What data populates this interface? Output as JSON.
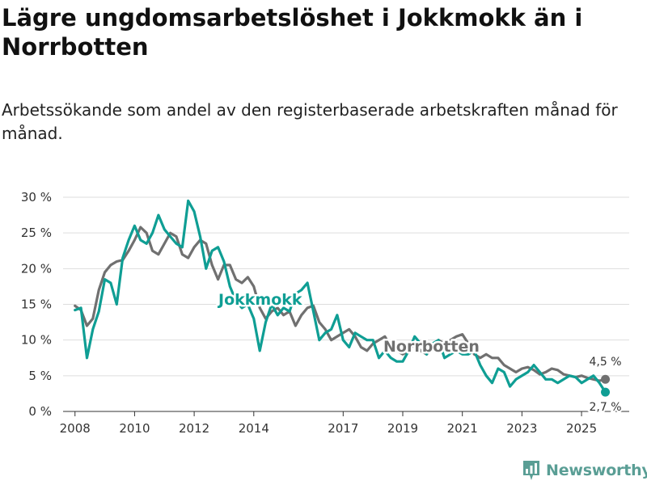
{
  "title": "Lägre ungdomsarbetslöshet i Jokkmokk än i Norrbotten",
  "subtitle": "Arbetssökande som andel av den registerbaserade arbetskraften månad för månad.",
  "colors": {
    "jokkmokk": "#0f9e94",
    "norrbotten": "#707070",
    "grid": "#dddddd",
    "logo": "#5a9e95"
  },
  "brand": {
    "name": "Newsworthy",
    "icon": "bar-chart-icon"
  },
  "chart_data": {
    "type": "line",
    "ylim": [
      0,
      30
    ],
    "xlim": [
      2007.6,
      2026.6
    ],
    "yticks": [
      {
        "value": 0,
        "label": "0 %"
      },
      {
        "value": 5,
        "label": "5 %"
      },
      {
        "value": 10,
        "label": "10 %"
      },
      {
        "value": 15,
        "label": "15 %"
      },
      {
        "value": 20,
        "label": "20 %"
      },
      {
        "value": 25,
        "label": "25 %"
      },
      {
        "value": 30,
        "label": "30 %"
      }
    ],
    "xticks": [
      {
        "value": 2008,
        "label": "2008"
      },
      {
        "value": 2010,
        "label": "2010"
      },
      {
        "value": 2012,
        "label": "2012"
      },
      {
        "value": 2014,
        "label": "2014"
      },
      {
        "value": 2017,
        "label": "2017"
      },
      {
        "value": 2019,
        "label": "2019"
      },
      {
        "value": 2021,
        "label": "2021"
      },
      {
        "value": 2023,
        "label": "2023"
      },
      {
        "value": 2025,
        "label": "2025"
      }
    ],
    "series": [
      {
        "name": "Norrbotten",
        "label": "Norrbotten",
        "end_label": "4,5 %",
        "x": [
          2008.0,
          2008.2,
          2008.4,
          2008.6,
          2008.8,
          2009.0,
          2009.2,
          2009.4,
          2009.6,
          2009.8,
          2010.0,
          2010.2,
          2010.4,
          2010.6,
          2010.8,
          2011.0,
          2011.2,
          2011.4,
          2011.6,
          2011.8,
          2012.0,
          2012.2,
          2012.4,
          2012.6,
          2012.8,
          2013.0,
          2013.2,
          2013.4,
          2013.6,
          2013.8,
          2014.0,
          2014.2,
          2014.4,
          2014.6,
          2014.8,
          2015.0,
          2015.2,
          2015.4,
          2015.6,
          2015.8,
          2016.0,
          2016.2,
          2016.4,
          2016.6,
          2016.8,
          2017.0,
          2017.2,
          2017.4,
          2017.6,
          2017.8,
          2018.0,
          2018.2,
          2018.4,
          2018.6,
          2018.8,
          2019.0,
          2019.2,
          2019.4,
          2019.6,
          2019.8,
          2020.0,
          2020.2,
          2020.4,
          2020.6,
          2020.8,
          2021.0,
          2021.2,
          2021.4,
          2021.6,
          2021.8,
          2022.0,
          2022.2,
          2022.4,
          2022.6,
          2022.8,
          2023.0,
          2023.2,
          2023.4,
          2023.6,
          2023.8,
          2024.0,
          2024.2,
          2024.4,
          2024.6,
          2024.8,
          2025.0,
          2025.2,
          2025.4,
          2025.6,
          2025.8
        ],
        "values": [
          14.8,
          14.2,
          12.0,
          13.0,
          17.0,
          19.5,
          20.5,
          21.0,
          21.2,
          22.5,
          24.0,
          25.8,
          25.0,
          22.5,
          22.0,
          23.5,
          25.0,
          24.5,
          22.0,
          21.5,
          23.0,
          24.0,
          23.5,
          20.5,
          18.5,
          20.5,
          20.5,
          18.5,
          18.0,
          18.8,
          17.5,
          14.5,
          13.0,
          14.0,
          14.5,
          13.5,
          14.0,
          12.0,
          13.5,
          14.5,
          14.8,
          12.5,
          11.5,
          10.0,
          10.5,
          11.0,
          11.5,
          10.5,
          9.0,
          8.5,
          9.5,
          10.0,
          10.5,
          9.0,
          8.5,
          8.0,
          8.5,
          9.5,
          8.5,
          8.0,
          9.0,
          10.0,
          9.5,
          10.0,
          10.5,
          10.8,
          9.5,
          8.0,
          7.5,
          8.0,
          7.5,
          7.5,
          6.5,
          6.0,
          5.5,
          6.0,
          6.2,
          5.8,
          5.2,
          5.5,
          6.0,
          5.8,
          5.2,
          5.0,
          4.8,
          5.0,
          4.7,
          4.5,
          4.3,
          4.5
        ]
      },
      {
        "name": "Jokkmokk",
        "label": "Jokkmokk",
        "end_label": "2,7 %",
        "x": [
          2008.0,
          2008.2,
          2008.4,
          2008.6,
          2008.8,
          2009.0,
          2009.2,
          2009.4,
          2009.6,
          2009.8,
          2010.0,
          2010.2,
          2010.4,
          2010.6,
          2010.8,
          2011.0,
          2011.2,
          2011.4,
          2011.6,
          2011.8,
          2012.0,
          2012.2,
          2012.4,
          2012.6,
          2012.8,
          2013.0,
          2013.2,
          2013.4,
          2013.6,
          2013.8,
          2014.0,
          2014.2,
          2014.4,
          2014.6,
          2014.8,
          2015.0,
          2015.2,
          2015.4,
          2015.6,
          2015.8,
          2016.0,
          2016.2,
          2016.4,
          2016.6,
          2016.8,
          2017.0,
          2017.2,
          2017.4,
          2017.6,
          2017.8,
          2018.0,
          2018.2,
          2018.4,
          2018.6,
          2018.8,
          2019.0,
          2019.2,
          2019.4,
          2019.6,
          2019.8,
          2020.0,
          2020.2,
          2020.4,
          2020.6,
          2020.8,
          2021.0,
          2021.2,
          2021.4,
          2021.6,
          2021.8,
          2022.0,
          2022.2,
          2022.4,
          2022.6,
          2022.8,
          2023.0,
          2023.2,
          2023.4,
          2023.6,
          2023.8,
          2024.0,
          2024.2,
          2024.4,
          2024.6,
          2024.8,
          2025.0,
          2025.2,
          2025.4,
          2025.6,
          2025.8
        ],
        "values": [
          14.2,
          14.5,
          7.5,
          11.5,
          14.0,
          18.5,
          18.0,
          15.0,
          21.5,
          24.0,
          26.0,
          24.0,
          23.5,
          25.0,
          27.5,
          25.5,
          24.5,
          23.5,
          23.0,
          29.5,
          28.0,
          24.5,
          20.0,
          22.5,
          23.0,
          21.0,
          17.5,
          15.5,
          14.5,
          15.0,
          13.0,
          8.5,
          12.5,
          15.0,
          13.5,
          14.5,
          14.0,
          16.5,
          17.0,
          18.0,
          14.0,
          10.0,
          11.0,
          11.5,
          13.5,
          10.0,
          9.0,
          11.0,
          10.5,
          10.0,
          10.0,
          7.5,
          8.5,
          7.5,
          7.0,
          7.0,
          8.5,
          10.5,
          9.5,
          8.0,
          9.5,
          10.0,
          7.5,
          8.0,
          8.5,
          8.0,
          8.0,
          8.5,
          6.5,
          5.0,
          4.0,
          6.0,
          5.5,
          3.5,
          4.5,
          5.0,
          5.5,
          6.5,
          5.5,
          4.5,
          4.5,
          4.0,
          4.5,
          5.0,
          4.8,
          4.0,
          4.5,
          5.0,
          4.0,
          2.7
        ]
      }
    ]
  }
}
